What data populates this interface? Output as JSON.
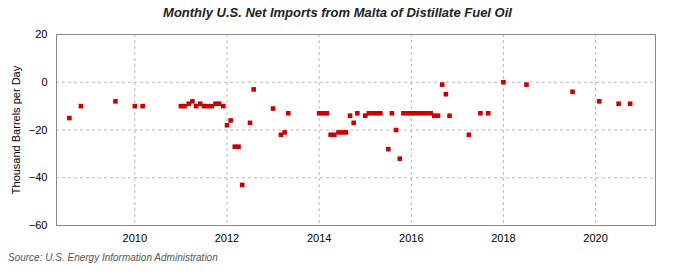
{
  "chart_data": {
    "type": "scatter",
    "title": "Monthly U.S. Net Imports from Malta of Distillate Fuel Oil",
    "ylabel": "Thousand Barrels per Day",
    "caption": "Source: U.S. Energy Information Administration",
    "color": "#cc0000",
    "marker": "square",
    "grid": true,
    "xlim": [
      2008.3,
      2021.3
    ],
    "xticks": [
      2010,
      2012,
      2014,
      2016,
      2018,
      2020
    ],
    "ylim": [
      -60,
      20
    ],
    "yticks": [
      -60,
      -40,
      -20,
      0,
      20
    ],
    "x": [
      2008.58,
      2008.83,
      2009.58,
      2010.0,
      2010.17,
      2011.0,
      2011.08,
      2011.17,
      2011.25,
      2011.33,
      2011.42,
      2011.5,
      2011.58,
      2011.67,
      2011.75,
      2011.83,
      2011.92,
      2012.0,
      2012.08,
      2012.17,
      2012.25,
      2012.33,
      2012.5,
      2012.58,
      2013.0,
      2013.17,
      2013.25,
      2013.33,
      2014.0,
      2014.08,
      2014.17,
      2014.25,
      2014.33,
      2014.42,
      2014.5,
      2014.58,
      2014.67,
      2014.75,
      2014.83,
      2015.0,
      2015.08,
      2015.17,
      2015.25,
      2015.33,
      2015.5,
      2015.58,
      2015.67,
      2015.75,
      2015.83,
      2015.92,
      2016.0,
      2016.08,
      2016.17,
      2016.25,
      2016.33,
      2016.42,
      2016.5,
      2016.58,
      2016.67,
      2016.75,
      2016.83,
      2017.25,
      2017.5,
      2017.67,
      2018.0,
      2018.5,
      2019.5,
      2020.08,
      2020.5,
      2020.75
    ],
    "values": [
      -15,
      -10,
      -8,
      -10,
      -10,
      -10,
      -10,
      -9,
      -8,
      -10,
      -9,
      -10,
      -10,
      -10,
      -9,
      -9,
      -10,
      -18,
      -16,
      -27,
      -27,
      -43,
      -17,
      -3,
      -11,
      -22,
      -21,
      -13,
      -13,
      -13,
      -13,
      -22,
      -22,
      -21,
      -21,
      -21,
      -14,
      -17,
      -13,
      -14,
      -13,
      -13,
      -13,
      -13,
      -28,
      -13,
      -20,
      -32,
      -13,
      -13,
      -13,
      -13,
      -13,
      -13,
      -13,
      -13,
      -14,
      -14,
      -1,
      -5,
      -14,
      -22,
      -13,
      -13,
      0,
      -1,
      -4,
      -8,
      -9,
      -9
    ]
  }
}
